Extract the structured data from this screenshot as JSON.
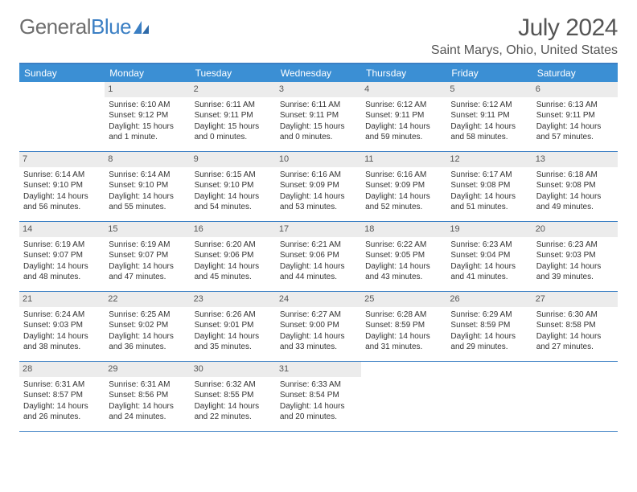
{
  "logo": {
    "text_gray": "General",
    "text_blue": "Blue"
  },
  "title": "July 2024",
  "location": "Saint Marys, Ohio, United States",
  "day_headers": [
    "Sunday",
    "Monday",
    "Tuesday",
    "Wednesday",
    "Thursday",
    "Friday",
    "Saturday"
  ],
  "colors": {
    "header_bg": "#3b8fd4",
    "border": "#3b7fc4",
    "date_bg": "#ececec",
    "text": "#333333",
    "title_text": "#555555"
  },
  "weeks": [
    [
      {
        "n": "",
        "sr": "",
        "ss": "",
        "d1": "",
        "d2": ""
      },
      {
        "n": "1",
        "sr": "Sunrise: 6:10 AM",
        "ss": "Sunset: 9:12 PM",
        "d1": "Daylight: 15 hours",
        "d2": "and 1 minute."
      },
      {
        "n": "2",
        "sr": "Sunrise: 6:11 AM",
        "ss": "Sunset: 9:11 PM",
        "d1": "Daylight: 15 hours",
        "d2": "and 0 minutes."
      },
      {
        "n": "3",
        "sr": "Sunrise: 6:11 AM",
        "ss": "Sunset: 9:11 PM",
        "d1": "Daylight: 15 hours",
        "d2": "and 0 minutes."
      },
      {
        "n": "4",
        "sr": "Sunrise: 6:12 AM",
        "ss": "Sunset: 9:11 PM",
        "d1": "Daylight: 14 hours",
        "d2": "and 59 minutes."
      },
      {
        "n": "5",
        "sr": "Sunrise: 6:12 AM",
        "ss": "Sunset: 9:11 PM",
        "d1": "Daylight: 14 hours",
        "d2": "and 58 minutes."
      },
      {
        "n": "6",
        "sr": "Sunrise: 6:13 AM",
        "ss": "Sunset: 9:11 PM",
        "d1": "Daylight: 14 hours",
        "d2": "and 57 minutes."
      }
    ],
    [
      {
        "n": "7",
        "sr": "Sunrise: 6:14 AM",
        "ss": "Sunset: 9:10 PM",
        "d1": "Daylight: 14 hours",
        "d2": "and 56 minutes."
      },
      {
        "n": "8",
        "sr": "Sunrise: 6:14 AM",
        "ss": "Sunset: 9:10 PM",
        "d1": "Daylight: 14 hours",
        "d2": "and 55 minutes."
      },
      {
        "n": "9",
        "sr": "Sunrise: 6:15 AM",
        "ss": "Sunset: 9:10 PM",
        "d1": "Daylight: 14 hours",
        "d2": "and 54 minutes."
      },
      {
        "n": "10",
        "sr": "Sunrise: 6:16 AM",
        "ss": "Sunset: 9:09 PM",
        "d1": "Daylight: 14 hours",
        "d2": "and 53 minutes."
      },
      {
        "n": "11",
        "sr": "Sunrise: 6:16 AM",
        "ss": "Sunset: 9:09 PM",
        "d1": "Daylight: 14 hours",
        "d2": "and 52 minutes."
      },
      {
        "n": "12",
        "sr": "Sunrise: 6:17 AM",
        "ss": "Sunset: 9:08 PM",
        "d1": "Daylight: 14 hours",
        "d2": "and 51 minutes."
      },
      {
        "n": "13",
        "sr": "Sunrise: 6:18 AM",
        "ss": "Sunset: 9:08 PM",
        "d1": "Daylight: 14 hours",
        "d2": "and 49 minutes."
      }
    ],
    [
      {
        "n": "14",
        "sr": "Sunrise: 6:19 AM",
        "ss": "Sunset: 9:07 PM",
        "d1": "Daylight: 14 hours",
        "d2": "and 48 minutes."
      },
      {
        "n": "15",
        "sr": "Sunrise: 6:19 AM",
        "ss": "Sunset: 9:07 PM",
        "d1": "Daylight: 14 hours",
        "d2": "and 47 minutes."
      },
      {
        "n": "16",
        "sr": "Sunrise: 6:20 AM",
        "ss": "Sunset: 9:06 PM",
        "d1": "Daylight: 14 hours",
        "d2": "and 45 minutes."
      },
      {
        "n": "17",
        "sr": "Sunrise: 6:21 AM",
        "ss": "Sunset: 9:06 PM",
        "d1": "Daylight: 14 hours",
        "d2": "and 44 minutes."
      },
      {
        "n": "18",
        "sr": "Sunrise: 6:22 AM",
        "ss": "Sunset: 9:05 PM",
        "d1": "Daylight: 14 hours",
        "d2": "and 43 minutes."
      },
      {
        "n": "19",
        "sr": "Sunrise: 6:23 AM",
        "ss": "Sunset: 9:04 PM",
        "d1": "Daylight: 14 hours",
        "d2": "and 41 minutes."
      },
      {
        "n": "20",
        "sr": "Sunrise: 6:23 AM",
        "ss": "Sunset: 9:03 PM",
        "d1": "Daylight: 14 hours",
        "d2": "and 39 minutes."
      }
    ],
    [
      {
        "n": "21",
        "sr": "Sunrise: 6:24 AM",
        "ss": "Sunset: 9:03 PM",
        "d1": "Daylight: 14 hours",
        "d2": "and 38 minutes."
      },
      {
        "n": "22",
        "sr": "Sunrise: 6:25 AM",
        "ss": "Sunset: 9:02 PM",
        "d1": "Daylight: 14 hours",
        "d2": "and 36 minutes."
      },
      {
        "n": "23",
        "sr": "Sunrise: 6:26 AM",
        "ss": "Sunset: 9:01 PM",
        "d1": "Daylight: 14 hours",
        "d2": "and 35 minutes."
      },
      {
        "n": "24",
        "sr": "Sunrise: 6:27 AM",
        "ss": "Sunset: 9:00 PM",
        "d1": "Daylight: 14 hours",
        "d2": "and 33 minutes."
      },
      {
        "n": "25",
        "sr": "Sunrise: 6:28 AM",
        "ss": "Sunset: 8:59 PM",
        "d1": "Daylight: 14 hours",
        "d2": "and 31 minutes."
      },
      {
        "n": "26",
        "sr": "Sunrise: 6:29 AM",
        "ss": "Sunset: 8:59 PM",
        "d1": "Daylight: 14 hours",
        "d2": "and 29 minutes."
      },
      {
        "n": "27",
        "sr": "Sunrise: 6:30 AM",
        "ss": "Sunset: 8:58 PM",
        "d1": "Daylight: 14 hours",
        "d2": "and 27 minutes."
      }
    ],
    [
      {
        "n": "28",
        "sr": "Sunrise: 6:31 AM",
        "ss": "Sunset: 8:57 PM",
        "d1": "Daylight: 14 hours",
        "d2": "and 26 minutes."
      },
      {
        "n": "29",
        "sr": "Sunrise: 6:31 AM",
        "ss": "Sunset: 8:56 PM",
        "d1": "Daylight: 14 hours",
        "d2": "and 24 minutes."
      },
      {
        "n": "30",
        "sr": "Sunrise: 6:32 AM",
        "ss": "Sunset: 8:55 PM",
        "d1": "Daylight: 14 hours",
        "d2": "and 22 minutes."
      },
      {
        "n": "31",
        "sr": "Sunrise: 6:33 AM",
        "ss": "Sunset: 8:54 PM",
        "d1": "Daylight: 14 hours",
        "d2": "and 20 minutes."
      },
      {
        "n": "",
        "sr": "",
        "ss": "",
        "d1": "",
        "d2": ""
      },
      {
        "n": "",
        "sr": "",
        "ss": "",
        "d1": "",
        "d2": ""
      },
      {
        "n": "",
        "sr": "",
        "ss": "",
        "d1": "",
        "d2": ""
      }
    ]
  ]
}
